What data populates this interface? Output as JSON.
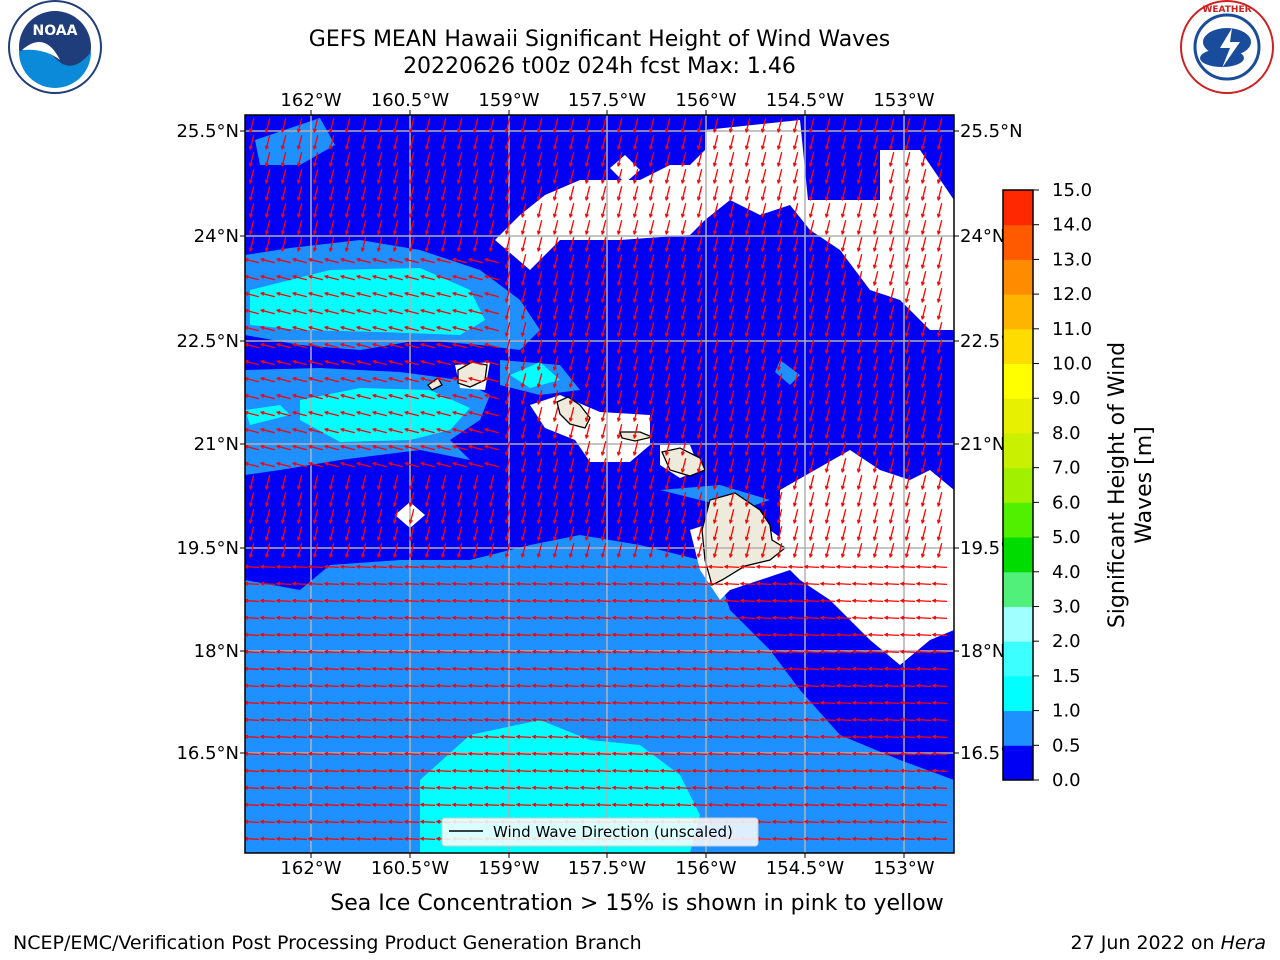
{
  "title": {
    "line1": "GEFS MEAN Hawaii Significant Height of Wind Waves",
    "line2": "20220626 t00z 024h fcst   Max: 1.46"
  },
  "logos": {
    "left": {
      "icon": "noaa-logo-icon",
      "text": "NOAA",
      "ring_text": "NATIONAL OCEANIC AND ATMOSPHERIC ADMINISTRATION · U.S. DEPARTMENT OF COMMERCE"
    },
    "right": {
      "icon": "nws-logo-icon",
      "ring_text": "NATIONAL WEATHER SERVICE"
    }
  },
  "map": {
    "lon_ticks": [
      "162°W",
      "160.5°W",
      "159°W",
      "157.5°W",
      "156°W",
      "154.5°W",
      "153°W"
    ],
    "lat_ticks": [
      "25.5°N",
      "24°N",
      "22.5°N",
      "21°N",
      "19.5°N",
      "18°N",
      "16.5°N"
    ],
    "legend_label": "Wind Wave Direction (unscaled)",
    "ocean_levels": {
      "low": "#0000f5",
      "mid": "#1e90ff",
      "high": "#00ffff",
      "land": "#efebdc",
      "arrow": "#ff0000"
    }
  },
  "colorbar": {
    "label_line1": "Significant Height of Wind",
    "label_line2": "Waves [m]",
    "ticks": [
      "0.0",
      "0.5",
      "1.0",
      "1.5",
      "2.0",
      "3.0",
      "4.0",
      "5.0",
      "6.0",
      "7.0",
      "8.0",
      "9.0",
      "10.0",
      "11.0",
      "12.0",
      "13.0",
      "14.0",
      "15.0"
    ],
    "colors": [
      "#0000f5",
      "#1e90ff",
      "#00ffff",
      "#3cffff",
      "#a0ffff",
      "#50f07a",
      "#00dc00",
      "#50f000",
      "#a0f000",
      "#c8f000",
      "#e6f000",
      "#ffff00",
      "#ffdc00",
      "#ffb400",
      "#ff8c00",
      "#ff5a00",
      "#ff2800"
    ]
  },
  "footer": {
    "note": "Sea Ice Concentration > 15% is shown in pink to yellow",
    "credit": "NCEP/EMC/Verification Post Processing Product Generation Branch",
    "date": "27 Jun 2022 on",
    "host": "Hera"
  }
}
